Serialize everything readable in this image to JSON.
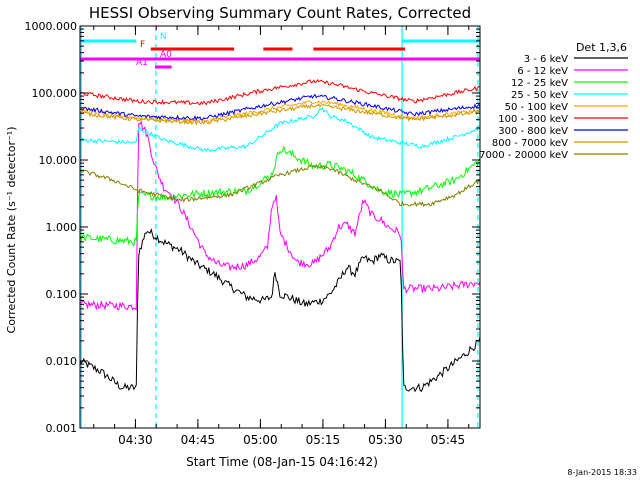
{
  "chart_data": {
    "type": "line",
    "title": "HESSI Observing Summary Count Rates, Corrected",
    "xlabel": "Start Time (08-Jan-15 04:16:42)",
    "ylabel": "Corrected Count Rate (s⁻¹ detector⁻¹)",
    "yscale": "log",
    "ylim": [
      0.001,
      1000
    ],
    "xlim_min": [
      0,
      96
    ],
    "y_ticks": [
      {
        "v": 1000,
        "label": "1000.000"
      },
      {
        "v": 100,
        "label": "100.000"
      },
      {
        "v": 10,
        "label": "10.000"
      },
      {
        "v": 1,
        "label": "1.000"
      },
      {
        "v": 0.1,
        "label": "0.100"
      },
      {
        "v": 0.01,
        "label": "0.010"
      },
      {
        "v": 0.001,
        "label": "0.001"
      }
    ],
    "x_ticks": [
      {
        "t": 13.3,
        "label": "04:30"
      },
      {
        "t": 28.3,
        "label": "04:45"
      },
      {
        "t": 43.3,
        "label": "05:00"
      },
      {
        "t": 58.3,
        "label": "05:15"
      },
      {
        "t": 73.3,
        "label": "05:30"
      },
      {
        "t": 88.3,
        "label": "05:45"
      }
    ],
    "legend_title": "Det 1,3,6",
    "series": [
      {
        "name": "3 - 6 keV",
        "color": "#000000",
        "points": [
          [
            0,
            0.01
          ],
          [
            5,
            0.007
          ],
          [
            10,
            0.004
          ],
          [
            13.5,
            0.004
          ],
          [
            14,
            0.4
          ],
          [
            16,
            0.9
          ],
          [
            20,
            0.6
          ],
          [
            24,
            0.45
          ],
          [
            28,
            0.28
          ],
          [
            32,
            0.2
          ],
          [
            36,
            0.13
          ],
          [
            40,
            0.09
          ],
          [
            44,
            0.08
          ],
          [
            46,
            0.09
          ],
          [
            46.8,
            0.22
          ],
          [
            48,
            0.1
          ],
          [
            50,
            0.09
          ],
          [
            54,
            0.07
          ],
          [
            58,
            0.08
          ],
          [
            60,
            0.1
          ],
          [
            62,
            0.15
          ],
          [
            64,
            0.25
          ],
          [
            66,
            0.2
          ],
          [
            68,
            0.35
          ],
          [
            70,
            0.3
          ],
          [
            72,
            0.38
          ],
          [
            74,
            0.32
          ],
          [
            77,
            0.3
          ],
          [
            77.6,
            0.004
          ],
          [
            82,
            0.004
          ],
          [
            86,
            0.006
          ],
          [
            92,
            0.012
          ],
          [
            96,
            0.02
          ]
        ]
      },
      {
        "name": "6 - 12 keV",
        "color": "#ff00ff",
        "points": [
          [
            0,
            0.07
          ],
          [
            13.5,
            0.065
          ],
          [
            14,
            40
          ],
          [
            16,
            25
          ],
          [
            18,
            8
          ],
          [
            20,
            4
          ],
          [
            22,
            3
          ],
          [
            24,
            2
          ],
          [
            27,
            0.9
          ],
          [
            30,
            0.4
          ],
          [
            33,
            0.28
          ],
          [
            36,
            0.25
          ],
          [
            40,
            0.27
          ],
          [
            43,
            0.35
          ],
          [
            45,
            0.5
          ],
          [
            46,
            2
          ],
          [
            47,
            3
          ],
          [
            48,
            0.8
          ],
          [
            52,
            0.3
          ],
          [
            56,
            0.28
          ],
          [
            60,
            0.5
          ],
          [
            62,
            1
          ],
          [
            64,
            1.1
          ],
          [
            66,
            0.8
          ],
          [
            68,
            2.5
          ],
          [
            70,
            1.5
          ],
          [
            72,
            1.3
          ],
          [
            74,
            1
          ],
          [
            77,
            0.8
          ],
          [
            77.6,
            0.12
          ],
          [
            86,
            0.12
          ],
          [
            96,
            0.15
          ]
        ]
      },
      {
        "name": "12 - 25 keV",
        "color": "#00ff00",
        "points": [
          [
            0,
            0.7
          ],
          [
            13.5,
            0.6
          ],
          [
            14,
            3
          ],
          [
            20,
            2.8
          ],
          [
            30,
            3.2
          ],
          [
            40,
            3.5
          ],
          [
            44,
            5
          ],
          [
            46,
            6
          ],
          [
            48,
            15
          ],
          [
            56,
            8
          ],
          [
            60,
            8.5
          ],
          [
            64,
            7
          ],
          [
            68,
            5
          ],
          [
            72,
            3.5
          ],
          [
            77,
            3
          ],
          [
            82,
            3.5
          ],
          [
            90,
            5
          ],
          [
            96,
            10
          ]
        ]
      },
      {
        "name": "25 - 50 keV",
        "color": "#00ffff",
        "points": [
          [
            0,
            20
          ],
          [
            13.5,
            18
          ],
          [
            14,
            30
          ],
          [
            20,
            20
          ],
          [
            30,
            14
          ],
          [
            40,
            16
          ],
          [
            48,
            35
          ],
          [
            56,
            45
          ],
          [
            58,
            60
          ],
          [
            60,
            45
          ],
          [
            64,
            38
          ],
          [
            70,
            22
          ],
          [
            77,
            18
          ],
          [
            82,
            16
          ],
          [
            90,
            22
          ],
          [
            96,
            30
          ]
        ]
      },
      {
        "name": "50 - 100 keV",
        "color": "#ffa500",
        "points": [
          [
            0,
            55
          ],
          [
            14,
            42
          ],
          [
            30,
            38
          ],
          [
            44,
            55
          ],
          [
            56,
            75
          ],
          [
            60,
            72
          ],
          [
            70,
            55
          ],
          [
            80,
            42
          ],
          [
            96,
            55
          ]
        ]
      },
      {
        "name": "100 - 300 keV",
        "color": "#ff0000",
        "points": [
          [
            0,
            100
          ],
          [
            14,
            75
          ],
          [
            30,
            70
          ],
          [
            44,
            110
          ],
          [
            56,
            150
          ],
          [
            60,
            140
          ],
          [
            70,
            100
          ],
          [
            80,
            75
          ],
          [
            96,
            120
          ]
        ]
      },
      {
        "name": "300 - 800 keV",
        "color": "#0000ff",
        "points": [
          [
            0,
            60
          ],
          [
            14,
            45
          ],
          [
            30,
            42
          ],
          [
            44,
            65
          ],
          [
            56,
            90
          ],
          [
            60,
            85
          ],
          [
            70,
            65
          ],
          [
            80,
            48
          ],
          [
            96,
            65
          ]
        ]
      },
      {
        "name": "800 - 7000 keV",
        "color": "#cc9900",
        "points": [
          [
            0,
            50
          ],
          [
            14,
            40
          ],
          [
            30,
            36
          ],
          [
            44,
            50
          ],
          [
            56,
            65
          ],
          [
            60,
            62
          ],
          [
            70,
            50
          ],
          [
            80,
            40
          ],
          [
            96,
            52
          ]
        ]
      },
      {
        "name": "7000 - 20000 keV",
        "color": "#808000",
        "points": [
          [
            0,
            7
          ],
          [
            8,
            5
          ],
          [
            14,
            3.5
          ],
          [
            24,
            2.5
          ],
          [
            36,
            3
          ],
          [
            48,
            6
          ],
          [
            56,
            8
          ],
          [
            60,
            7.5
          ],
          [
            66,
            5
          ],
          [
            72,
            3.5
          ],
          [
            77,
            2.2
          ],
          [
            84,
            2.2
          ],
          [
            90,
            3
          ],
          [
            96,
            5
          ]
        ]
      }
    ],
    "flags": [
      {
        "label": "N",
        "color": "#00ffff",
        "segments": [
          [
            0,
            13.5
          ],
          [
            77.3,
            96
          ]
        ]
      },
      {
        "label": "F",
        "color": "#ff0000",
        "segments": [
          [
            17,
            37
          ],
          [
            44,
            51
          ],
          [
            56,
            78
          ]
        ]
      },
      {
        "label": "A0",
        "color": "#ff00ff",
        "segments": [
          [
            0,
            96
          ]
        ]
      },
      {
        "label": "A1",
        "color": "#ff00ff",
        "segments": [
          [
            18,
            22
          ]
        ]
      }
    ],
    "vlines": [
      {
        "t": 0.3,
        "color": "#00ffff",
        "style": "solid"
      },
      {
        "t": 18.2,
        "color": "#00ffff",
        "style": "dashed"
      },
      {
        "t": 77.3,
        "color": "#00ffff",
        "style": "solid"
      },
      {
        "t": 95.5,
        "color": "#00ffff",
        "style": "dashed"
      }
    ],
    "stamp": "8-Jan-2015 18:33"
  }
}
